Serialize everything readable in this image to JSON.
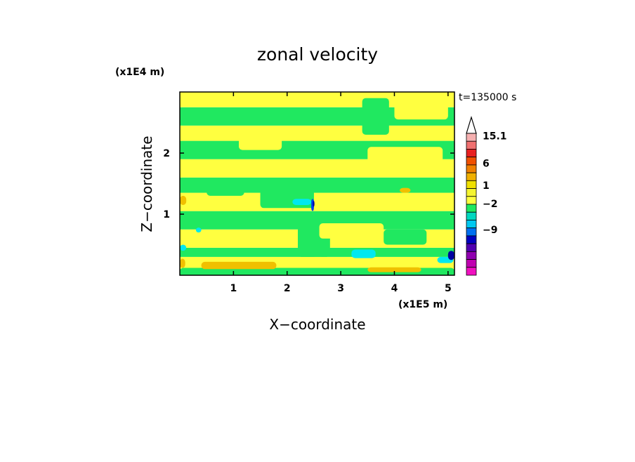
{
  "chart_data": {
    "type": "heatmap",
    "title": "zonal velocity",
    "xlabel": "X−coordinate",
    "ylabel": "Z−coordinate",
    "x_unit": "(x1E5 m)",
    "y_unit": "(x1E4 m)",
    "annotation": "t=135000 s",
    "x_range": [
      0,
      5.12
    ],
    "y_range": [
      0,
      3.0
    ],
    "x_ticks": [
      1,
      2,
      3,
      4,
      5
    ],
    "x_tick_labels": [
      "1",
      "2",
      "3",
      "4",
      "5"
    ],
    "y_ticks": [
      1,
      2
    ],
    "y_tick_labels": [
      "1",
      "2"
    ],
    "colorbar": {
      "labels": [
        "15.1",
        "6",
        "1",
        "−2",
        "−9"
      ],
      "colors_top_to_bottom": [
        "#ffffff",
        "#f5b0b0",
        "#f07070",
        "#e82020",
        "#f05000",
        "#f08000",
        "#f0b000",
        "#f0e000",
        "#f5f530",
        "#ffff40",
        "#20e860",
        "#00d8c0",
        "#00c8f0",
        "#0070f0",
        "#0000c0",
        "#5000b0",
        "#9000b0",
        "#c000b0",
        "#f010c0"
      ],
      "extend": "max"
    },
    "palette": {
      "yellow": "#ffff40",
      "green": "#20e860",
      "cyan": "#00e8f0",
      "light_orange": "#f0c000",
      "blue": "#0040f0",
      "dark_blue": "#0000a0"
    },
    "bands": [
      {
        "z": [
          0.0,
          0.1
        ],
        "value": -1.5,
        "color": "#20e860"
      },
      {
        "z": [
          0.1,
          0.3
        ],
        "value": 0.5,
        "color": "#ffff40"
      },
      {
        "z": [
          0.3,
          0.45
        ],
        "value": -1.5,
        "color": "#20e860"
      },
      {
        "z": [
          0.45,
          0.75
        ],
        "value": 0.5,
        "color": "#ffff40"
      },
      {
        "z": [
          0.75,
          1.05
        ],
        "value": -1.5,
        "color": "#20e860"
      },
      {
        "z": [
          1.05,
          1.35
        ],
        "value": 0.5,
        "color": "#ffff40"
      },
      {
        "z": [
          1.35,
          1.6
        ],
        "value": -1.5,
        "color": "#20e860"
      },
      {
        "z": [
          1.6,
          1.9
        ],
        "value": 0.5,
        "color": "#ffff40"
      },
      {
        "z": [
          1.9,
          2.2
        ],
        "value": -1.5,
        "color": "#20e860"
      },
      {
        "z": [
          2.2,
          2.45
        ],
        "value": 0.5,
        "color": "#ffff40"
      },
      {
        "z": [
          2.45,
          2.75
        ],
        "value": -1.5,
        "color": "#20e860"
      },
      {
        "z": [
          2.75,
          3.0
        ],
        "value": 0.5,
        "color": "#ffff40"
      }
    ],
    "patches": [
      {
        "x": 0.0,
        "z": 0.0,
        "w": 5.12,
        "h": 0.12,
        "color": "#20e860"
      },
      {
        "x": 0.4,
        "z": 0.1,
        "w": 1.4,
        "h": 0.12,
        "color": "#f0c000"
      },
      {
        "x": 3.5,
        "z": 0.05,
        "w": 1.0,
        "h": 0.08,
        "color": "#f0c000"
      },
      {
        "x": 0.0,
        "z": 0.12,
        "w": 0.1,
        "h": 0.15,
        "color": "#f0c000"
      },
      {
        "x": 2.45,
        "z": 0.15,
        "w": 0.25,
        "h": 0.15,
        "color": "#ffff40"
      },
      {
        "x": 2.2,
        "z": 0.3,
        "w": 0.6,
        "h": 0.5,
        "color": "#20e860"
      },
      {
        "x": 2.6,
        "z": 0.6,
        "w": 1.2,
        "h": 0.25,
        "color": "#ffff40"
      },
      {
        "x": 3.8,
        "z": 0.5,
        "w": 0.8,
        "h": 0.25,
        "color": "#20e860"
      },
      {
        "x": 3.2,
        "z": 0.28,
        "w": 0.45,
        "h": 0.14,
        "color": "#00e8f0"
      },
      {
        "x": 4.8,
        "z": 0.2,
        "w": 0.3,
        "h": 0.1,
        "color": "#00e8f0"
      },
      {
        "x": 5.0,
        "z": 0.25,
        "w": 0.12,
        "h": 0.15,
        "color": "#0000a0"
      },
      {
        "x": 0.0,
        "z": 0.4,
        "w": 0.12,
        "h": 0.1,
        "color": "#00e8f0"
      },
      {
        "x": 0.3,
        "z": 0.7,
        "w": 0.1,
        "h": 0.08,
        "color": "#00e8f0"
      },
      {
        "x": 1.5,
        "z": 1.1,
        "w": 1.0,
        "h": 0.35,
        "color": "#20e860"
      },
      {
        "x": 2.1,
        "z": 1.15,
        "w": 0.35,
        "h": 0.1,
        "color": "#00e8f0"
      },
      {
        "x": 2.45,
        "z": 1.05,
        "w": 0.05,
        "h": 0.2,
        "color": "#0040f0"
      },
      {
        "x": 2.48,
        "z": 1.12,
        "w": 0.03,
        "h": 0.1,
        "color": "#0000a0"
      },
      {
        "x": 4.1,
        "z": 1.35,
        "w": 0.2,
        "h": 0.08,
        "color": "#f0c000"
      },
      {
        "x": 0.0,
        "z": 1.15,
        "w": 0.12,
        "h": 0.15,
        "color": "#f0c000"
      },
      {
        "x": 0.5,
        "z": 1.3,
        "w": 0.7,
        "h": 0.2,
        "color": "#20e860"
      },
      {
        "x": 3.5,
        "z": 1.8,
        "w": 1.4,
        "h": 0.3,
        "color": "#ffff40"
      },
      {
        "x": 1.1,
        "z": 2.05,
        "w": 0.8,
        "h": 0.25,
        "color": "#ffff40"
      },
      {
        "x": 3.4,
        "z": 2.3,
        "w": 0.5,
        "h": 0.6,
        "color": "#20e860"
      },
      {
        "x": 4.0,
        "z": 2.55,
        "w": 1.0,
        "h": 0.3,
        "color": "#ffff40"
      }
    ]
  }
}
